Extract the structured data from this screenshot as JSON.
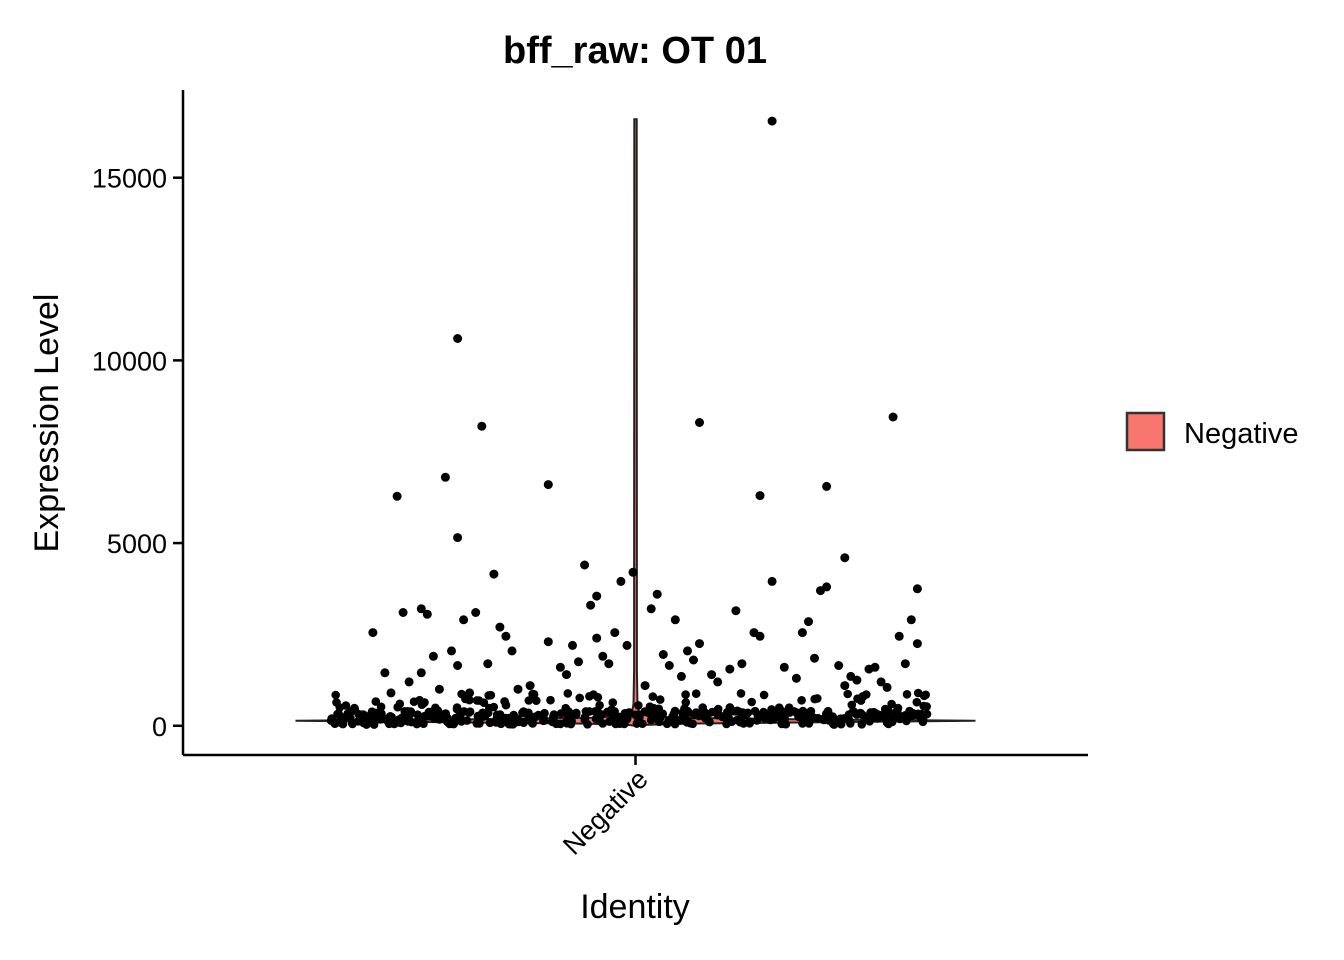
{
  "chart_data": {
    "type": "violin",
    "title": "bff_raw: OT 01",
    "xlabel": "Identity",
    "ylabel": "Expression Level",
    "categories": [
      "Negative"
    ],
    "yticks": [
      0,
      5000,
      10000,
      15000
    ],
    "yticks_text": [
      "0",
      "5000",
      "10000",
      "15000"
    ],
    "ylim": [
      -800,
      17400
    ],
    "grid": false,
    "legend": {
      "position": "right",
      "entries": [
        {
          "label": "Negative",
          "color": "#F8766D"
        }
      ]
    },
    "series": [
      {
        "name": "Negative",
        "color": "#F8766D",
        "max": 16600,
        "points": [
          [
            0.07,
            2550
          ],
          [
            0.11,
            6280
          ],
          [
            0.12,
            3100
          ],
          [
            0.15,
            3200
          ],
          [
            0.16,
            3050
          ],
          [
            0.19,
            6800
          ],
          [
            0.21,
            5150
          ],
          [
            0.21,
            10600
          ],
          [
            0.22,
            2900
          ],
          [
            0.25,
            8200
          ],
          [
            0.24,
            3100
          ],
          [
            0.27,
            4150
          ],
          [
            0.28,
            2700
          ],
          [
            0.29,
            2450
          ],
          [
            0.3,
            2050
          ],
          [
            0.26,
            1700
          ],
          [
            0.33,
            1100
          ],
          [
            0.36,
            2300
          ],
          [
            0.36,
            6600
          ],
          [
            0.38,
            1600
          ],
          [
            0.4,
            2200
          ],
          [
            0.41,
            1750
          ],
          [
            0.42,
            4400
          ],
          [
            0.43,
            3300
          ],
          [
            0.44,
            3550
          ],
          [
            0.44,
            2400
          ],
          [
            0.45,
            1900
          ],
          [
            0.47,
            2550
          ],
          [
            0.48,
            3950
          ],
          [
            0.49,
            2200
          ],
          [
            0.5,
            4200
          ],
          [
            0.15,
            1450
          ],
          [
            0.17,
            1900
          ],
          [
            0.2,
            2050
          ],
          [
            0.21,
            1650
          ],
          [
            0.09,
            1450
          ],
          [
            0.13,
            1200
          ],
          [
            0.52,
            1100
          ],
          [
            0.53,
            3200
          ],
          [
            0.54,
            3600
          ],
          [
            0.55,
            1950
          ],
          [
            0.56,
            1650
          ],
          [
            0.57,
            2900
          ],
          [
            0.59,
            2050
          ],
          [
            0.6,
            1800
          ],
          [
            0.61,
            2250
          ],
          [
            0.61,
            8300
          ],
          [
            0.63,
            1400
          ],
          [
            0.66,
            1550
          ],
          [
            0.67,
            3150
          ],
          [
            0.68,
            1700
          ],
          [
            0.7,
            2550
          ],
          [
            0.71,
            6300
          ],
          [
            0.71,
            2450
          ],
          [
            0.73,
            3950
          ],
          [
            0.73,
            16550
          ],
          [
            0.75,
            1600
          ],
          [
            0.78,
            2550
          ],
          [
            0.79,
            2850
          ],
          [
            0.8,
            1850
          ],
          [
            0.81,
            3700
          ],
          [
            0.82,
            3800
          ],
          [
            0.82,
            6550
          ],
          [
            0.84,
            1650
          ],
          [
            0.85,
            4600
          ],
          [
            0.85,
            1100
          ],
          [
            0.86,
            1350
          ],
          [
            0.87,
            1250
          ],
          [
            0.89,
            1550
          ],
          [
            0.9,
            1600
          ],
          [
            0.91,
            1200
          ],
          [
            0.93,
            8450
          ],
          [
            0.94,
            2450
          ],
          [
            0.95,
            1700
          ],
          [
            0.96,
            2900
          ],
          [
            0.97,
            3750
          ],
          [
            0.97,
            2250
          ],
          [
            0.92,
            1050
          ],
          [
            0.88,
            800
          ],
          [
            0.77,
            1300
          ],
          [
            0.64,
            1200
          ],
          [
            0.58,
            1350
          ],
          [
            0.46,
            1700
          ],
          [
            0.39,
            1400
          ],
          [
            0.31,
            1000
          ],
          [
            0.23,
            900
          ],
          [
            0.1,
            900
          ],
          [
            0.18,
            1000
          ]
        ]
      }
    ]
  }
}
